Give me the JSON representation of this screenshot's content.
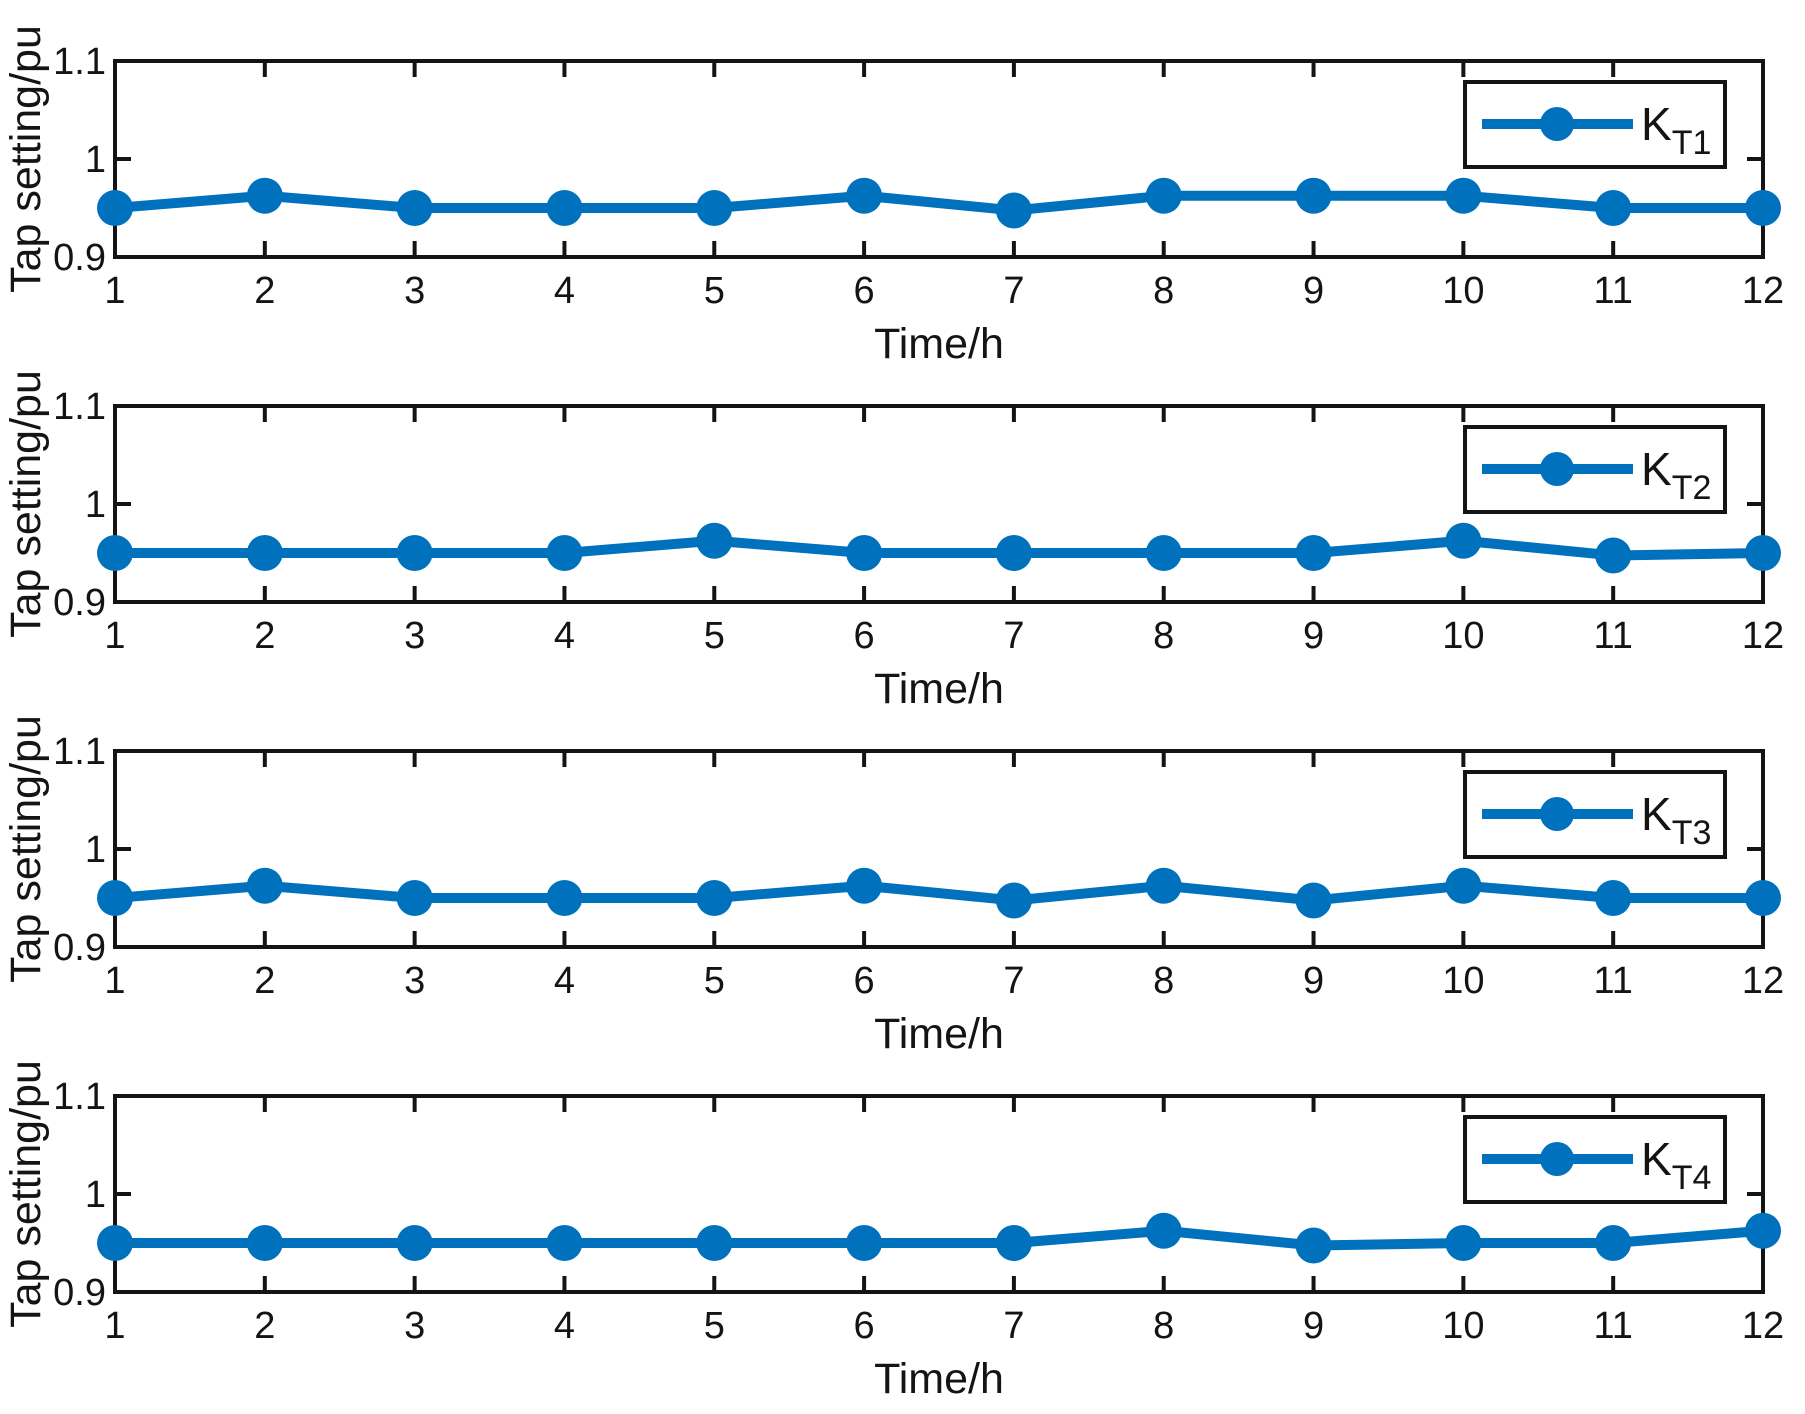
{
  "figure": {
    "background": "#ffffff",
    "accent_color": "#0072BD",
    "axis_color": "#141414"
  },
  "chart_data": [
    {
      "type": "line",
      "title": "",
      "xlabel": "Time/h",
      "ylabel": "Tap setting/pu",
      "x": [
        1,
        2,
        3,
        4,
        5,
        6,
        7,
        8,
        9,
        10,
        11,
        12
      ],
      "xlim": [
        1,
        12
      ],
      "ylim": [
        0.9,
        1.1
      ],
      "xticks": [
        1,
        2,
        3,
        4,
        5,
        6,
        7,
        8,
        9,
        10,
        11,
        12
      ],
      "yticks": [
        0.9,
        1.0,
        1.1
      ],
      "ytick_labels": [
        "0.9",
        "1",
        "1.1"
      ],
      "grid": false,
      "legend": {
        "main": "K",
        "sub": "T1",
        "position": "top-right"
      },
      "series": [
        {
          "name": "K_T1",
          "marker": "circle",
          "values": [
            0.95,
            0.9625,
            0.95,
            0.95,
            0.95,
            0.9625,
            0.9475,
            0.9625,
            0.9625,
            0.9625,
            0.95,
            0.95
          ]
        }
      ]
    },
    {
      "type": "line",
      "title": "",
      "xlabel": "Time/h",
      "ylabel": "Tap setting/pu",
      "x": [
        1,
        2,
        3,
        4,
        5,
        6,
        7,
        8,
        9,
        10,
        11,
        12
      ],
      "xlim": [
        1,
        12
      ],
      "ylim": [
        0.9,
        1.1
      ],
      "xticks": [
        1,
        2,
        3,
        4,
        5,
        6,
        7,
        8,
        9,
        10,
        11,
        12
      ],
      "yticks": [
        0.9,
        1.0,
        1.1
      ],
      "ytick_labels": [
        "0.9",
        "1",
        "1.1"
      ],
      "grid": false,
      "legend": {
        "main": "K",
        "sub": "T2",
        "position": "top-right"
      },
      "series": [
        {
          "name": "K_T2",
          "marker": "circle",
          "values": [
            0.95,
            0.95,
            0.95,
            0.95,
            0.9625,
            0.95,
            0.95,
            0.95,
            0.95,
            0.9625,
            0.9475,
            0.95
          ]
        }
      ]
    },
    {
      "type": "line",
      "title": "",
      "xlabel": "Time/h",
      "ylabel": "Tap setting/pu",
      "x": [
        1,
        2,
        3,
        4,
        5,
        6,
        7,
        8,
        9,
        10,
        11,
        12
      ],
      "xlim": [
        1,
        12
      ],
      "ylim": [
        0.9,
        1.1
      ],
      "xticks": [
        1,
        2,
        3,
        4,
        5,
        6,
        7,
        8,
        9,
        10,
        11,
        12
      ],
      "yticks": [
        0.9,
        1.0,
        1.1
      ],
      "ytick_labels": [
        "0.9",
        "1",
        "1.1"
      ],
      "grid": false,
      "legend": {
        "main": "K",
        "sub": "T3",
        "position": "top-right"
      },
      "series": [
        {
          "name": "K_T3",
          "marker": "circle",
          "values": [
            0.95,
            0.9625,
            0.95,
            0.95,
            0.95,
            0.9625,
            0.9475,
            0.9625,
            0.9475,
            0.9625,
            0.95,
            0.95
          ]
        }
      ]
    },
    {
      "type": "line",
      "title": "",
      "xlabel": "Time/h",
      "ylabel": "Tap setting/pu",
      "x": [
        1,
        2,
        3,
        4,
        5,
        6,
        7,
        8,
        9,
        10,
        11,
        12
      ],
      "xlim": [
        1,
        12
      ],
      "ylim": [
        0.9,
        1.1
      ],
      "xticks": [
        1,
        2,
        3,
        4,
        5,
        6,
        7,
        8,
        9,
        10,
        11,
        12
      ],
      "yticks": [
        0.9,
        1.0,
        1.1
      ],
      "ytick_labels": [
        "0.9",
        "1",
        "1.1"
      ],
      "grid": false,
      "legend": {
        "main": "K",
        "sub": "T4",
        "position": "top-right"
      },
      "series": [
        {
          "name": "K_T4",
          "marker": "circle",
          "values": [
            0.95,
            0.95,
            0.95,
            0.95,
            0.95,
            0.95,
            0.95,
            0.9625,
            0.9475,
            0.95,
            0.95,
            0.9625
          ]
        }
      ]
    }
  ]
}
